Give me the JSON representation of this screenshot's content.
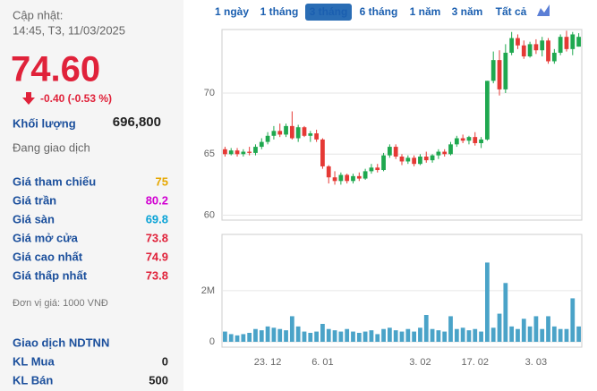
{
  "header": {
    "updated_label": "Cập nhật:",
    "updated_time": "14:45, T3, 11/03/2025"
  },
  "price": {
    "last": "74.60",
    "change": "-0.40 (-0.53 %)"
  },
  "volume": {
    "label": "Khối lượng",
    "value": "696,800"
  },
  "status": "Đang giao dịch",
  "stats": [
    {
      "label": "Giá tham chiếu",
      "value": "75",
      "color": "#e6a700"
    },
    {
      "label": "Giá trần",
      "value": "80.2",
      "color": "#d100d1"
    },
    {
      "label": "Giá sàn",
      "value": "69.8",
      "color": "#0aa3d6"
    },
    {
      "label": "Giá mở cửa",
      "value": "73.8",
      "color": "#e0223a"
    },
    {
      "label": "Giá cao nhất",
      "value": "74.9",
      "color": "#e0223a"
    },
    {
      "label": "Giá thấp nhất",
      "value": "73.8",
      "color": "#e0223a"
    }
  ],
  "unit_note": "Đơn vị giá: 1000 VNĐ",
  "foreign": {
    "title": "Giao dịch NDTNN",
    "rows": [
      {
        "label": "KL Mua",
        "value": "0"
      },
      {
        "label": "KL Bán",
        "value": "500"
      }
    ]
  },
  "ranges": {
    "items": [
      "1 ngày",
      "1 tháng",
      "3 tháng",
      "6 tháng",
      "1 năm",
      "3 năm",
      "Tất cả"
    ],
    "active": 2,
    "active_color": "#2a6db5"
  },
  "chart_data": [
    {
      "type": "candlestick",
      "up_color": "#1fa84f",
      "down_color": "#e53935",
      "grid": true,
      "ylim": [
        59.6,
        75.2
      ],
      "yticks": [
        60,
        65,
        70
      ],
      "open": [
        65.4,
        65.0,
        65.3,
        65.0,
        65.2,
        65.1,
        65.6,
        66.0,
        66.5,
        66.9,
        66.6,
        67.3,
        66.3,
        67.2,
        66.5,
        66.7,
        66.2,
        64.0,
        63.1,
        62.8,
        63.3,
        62.8,
        63.2,
        63.0,
        63.6,
        63.9,
        63.7,
        64.9,
        65.6,
        64.8,
        64.4,
        64.7,
        64.2,
        64.8,
        64.5,
        64.9,
        65.2,
        65.0,
        65.8,
        66.3,
        66.1,
        66.4,
        65.9,
        66.2,
        71.0,
        72.7,
        70.3,
        73.3,
        74.5,
        73.9,
        73.0,
        74.0,
        73.5,
        74.3,
        72.6,
        73.3,
        74.6,
        73.6,
        73.8
      ],
      "high": [
        65.6,
        65.5,
        65.5,
        65.4,
        65.6,
        65.8,
        66.3,
        66.8,
        67.3,
        67.5,
        67.5,
        68.5,
        67.4,
        67.3,
        66.9,
        67.0,
        66.3,
        64.1,
        63.6,
        63.5,
        63.4,
        63.4,
        63.5,
        63.8,
        64.2,
        64.2,
        65.1,
        65.8,
        65.8,
        65.0,
        64.9,
        64.9,
        65.0,
        65.2,
        65.0,
        65.4,
        65.4,
        66.0,
        66.5,
        66.6,
        66.5,
        66.8,
        66.4,
        71.0,
        73.4,
        73.5,
        74.0,
        75.0,
        74.8,
        74.3,
        74.2,
        74.4,
        74.6,
        74.5,
        73.6,
        74.8,
        75.1,
        75.0,
        74.9
      ],
      "low": [
        64.8,
        64.9,
        64.8,
        64.8,
        64.9,
        64.9,
        65.4,
        65.8,
        66.2,
        66.4,
        66.4,
        66.2,
        66.0,
        66.4,
        66.0,
        66.0,
        63.8,
        62.6,
        62.5,
        62.5,
        62.6,
        62.6,
        62.8,
        62.9,
        63.4,
        63.5,
        63.6,
        64.7,
        64.6,
        64.1,
        64.2,
        64.0,
        64.1,
        64.3,
        64.3,
        64.6,
        64.8,
        64.9,
        65.6,
        65.9,
        65.8,
        65.7,
        65.5,
        66.1,
        70.8,
        69.8,
        70.0,
        73.1,
        73.6,
        72.8,
        72.9,
        73.2,
        73.0,
        72.4,
        72.4,
        73.1,
        73.4,
        73.1,
        73.8
      ],
      "close": [
        65.0,
        65.3,
        65.0,
        65.2,
        65.1,
        65.6,
        66.0,
        66.5,
        66.9,
        66.6,
        67.3,
        66.3,
        67.2,
        66.5,
        66.7,
        66.2,
        64.0,
        63.1,
        62.8,
        63.3,
        62.8,
        63.2,
        63.0,
        63.6,
        63.9,
        63.7,
        64.9,
        65.6,
        64.8,
        64.4,
        64.7,
        64.2,
        64.8,
        64.5,
        64.9,
        65.2,
        65.0,
        65.8,
        66.3,
        66.1,
        66.4,
        65.9,
        66.2,
        71.0,
        72.7,
        70.3,
        73.3,
        74.5,
        73.9,
        73.0,
        74.0,
        73.5,
        74.3,
        72.6,
        73.3,
        74.6,
        73.6,
        74.8,
        74.6
      ]
    },
    {
      "type": "bar",
      "color": "#4aa3c8",
      "grid": true,
      "ylim": [
        0,
        4200000
      ],
      "yticks": [
        0,
        {
          "value": 2000000,
          "label": "2M"
        }
      ],
      "categories": [
        null,
        null,
        null,
        null,
        null,
        null,
        null,
        "23. 12",
        null,
        null,
        null,
        null,
        null,
        null,
        null,
        null,
        "6. 01",
        null,
        null,
        null,
        null,
        null,
        null,
        null,
        null,
        null,
        null,
        null,
        null,
        null,
        null,
        null,
        "3. 02",
        null,
        null,
        null,
        null,
        null,
        null,
        null,
        null,
        "17. 02",
        null,
        null,
        null,
        null,
        null,
        null,
        null,
        null,
        null,
        "3. 03",
        null,
        null,
        null,
        null,
        null,
        null,
        null
      ],
      "values": [
        400000,
        300000,
        250000,
        300000,
        350000,
        500000,
        450000,
        600000,
        550000,
        500000,
        450000,
        1000000,
        600000,
        400000,
        350000,
        400000,
        700000,
        500000,
        450000,
        400000,
        500000,
        400000,
        350000,
        400000,
        450000,
        300000,
        500000,
        550000,
        450000,
        400000,
        500000,
        400000,
        550000,
        1050000,
        500000,
        450000,
        400000,
        1000000,
        500000,
        550000,
        450000,
        500000,
        400000,
        3100000,
        550000,
        1100000,
        2300000,
        600000,
        500000,
        900000,
        600000,
        1000000,
        500000,
        1000000,
        600000,
        500000,
        500000,
        1700000,
        600000
      ]
    }
  ]
}
